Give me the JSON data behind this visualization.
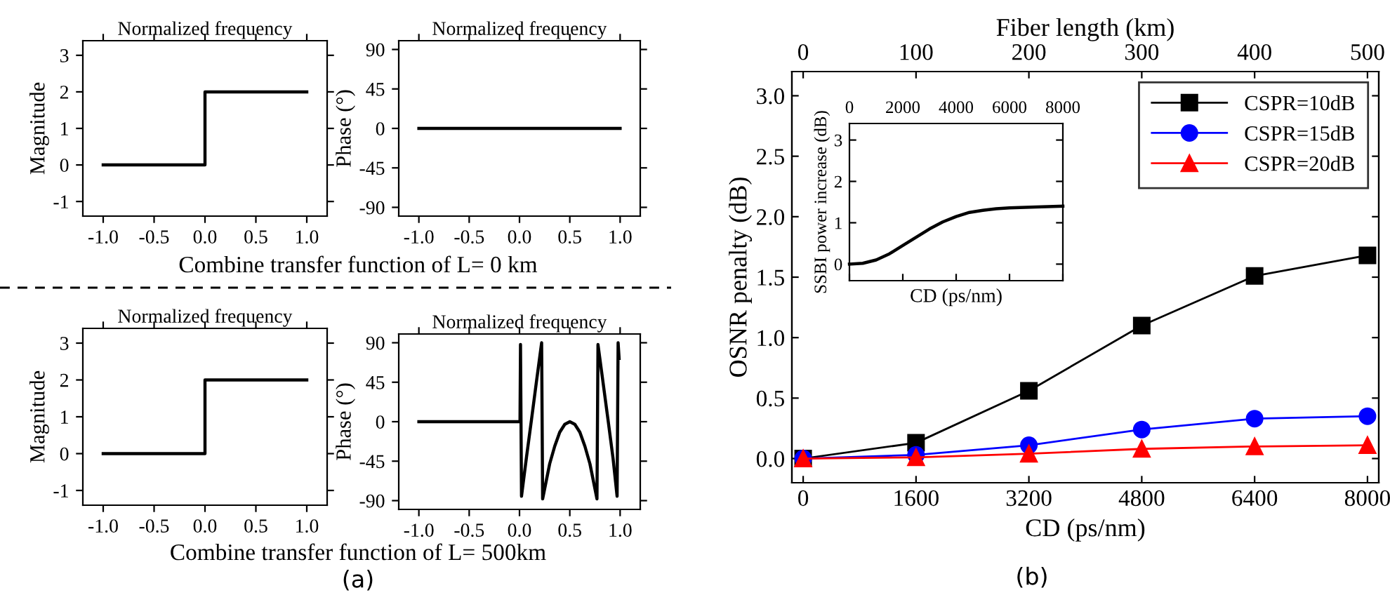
{
  "chart_data": [
    {
      "type": "line",
      "title": "Normalized frequency",
      "ylabel": "Magnitude",
      "annotations": [
        "Combine transfer function of L= 0 km"
      ],
      "xlim": [
        -1.2,
        1.2
      ],
      "ylim": [
        -1.4,
        3.4
      ],
      "xticks": [
        {
          "value": -1,
          "label": "-1.0"
        },
        {
          "value": -0.5,
          "label": "-0.5"
        },
        {
          "value": 0,
          "label": "0.0"
        },
        {
          "value": 0.5,
          "label": "0.5"
        },
        {
          "value": 1,
          "label": "1.0"
        }
      ],
      "yticks": [
        -1,
        0,
        1,
        2,
        3
      ],
      "series": [
        {
          "color": "#000000",
          "x": [
            -1,
            0,
            0,
            1
          ],
          "values": [
            0,
            0,
            2,
            2
          ]
        }
      ]
    },
    {
      "type": "line",
      "title": "Normalized frequency",
      "ylabel": "Phase (°)",
      "xlim": [
        -1.2,
        1.2
      ],
      "ylim": [
        -100,
        100
      ],
      "xticks": [
        {
          "value": -1,
          "label": "-1.0"
        },
        {
          "value": -0.5,
          "label": "-0.5"
        },
        {
          "value": 0,
          "label": "0.0"
        },
        {
          "value": 0.5,
          "label": "0.5"
        },
        {
          "value": 1,
          "label": "1.0"
        }
      ],
      "yticks": [
        -90,
        -45,
        0,
        45,
        90
      ],
      "series": [
        {
          "color": "#000000",
          "x": [
            -1,
            1
          ],
          "values": [
            0,
            0
          ]
        }
      ]
    },
    {
      "type": "line",
      "title": "Normalized frequency",
      "ylabel": "Magnitude",
      "annotations": [
        "Combine transfer function of L= 500km",
        "(a)"
      ],
      "xlim": [
        -1.2,
        1.2
      ],
      "ylim": [
        -1.4,
        3.4
      ],
      "xticks": [
        {
          "value": -1,
          "label": "-1.0"
        },
        {
          "value": -0.5,
          "label": "-0.5"
        },
        {
          "value": 0,
          "label": "0.0"
        },
        {
          "value": 0.5,
          "label": "0.5"
        },
        {
          "value": 1,
          "label": "1.0"
        }
      ],
      "yticks": [
        -1,
        0,
        1,
        2,
        3
      ],
      "series": [
        {
          "color": "#000000",
          "x": [
            -1,
            0,
            0,
            1
          ],
          "values": [
            0,
            0,
            2,
            2
          ]
        }
      ]
    },
    {
      "type": "line",
      "title": "Normalized frequency",
      "ylabel": "Phase (°)",
      "xlim": [
        -1.2,
        1.2
      ],
      "ylim": [
        -100,
        100
      ],
      "xticks": [
        {
          "value": -1,
          "label": "-1.0"
        },
        {
          "value": -0.5,
          "label": "-0.5"
        },
        {
          "value": 0,
          "label": "0.0"
        },
        {
          "value": 0.5,
          "label": "0.5"
        },
        {
          "value": 1,
          "label": "1.0"
        }
      ],
      "yticks": [
        -90,
        -45,
        0,
        45,
        90
      ],
      "series": [
        {
          "color": "#000000",
          "x": [
            -1,
            0.005,
            0.01,
            0.02,
            0.07,
            0.12,
            0.17,
            0.22,
            0.23,
            0.3,
            0.35,
            0.4,
            0.45,
            0.5,
            0.55,
            0.6,
            0.65,
            0.7,
            0.77,
            0.78,
            0.83,
            0.88,
            0.93,
            0.97,
            0.98,
            0.99
          ],
          "values": [
            0,
            0,
            88,
            -85,
            -40,
            3,
            47,
            90,
            -88,
            -48,
            -28,
            -12,
            -3,
            0,
            -3,
            -12,
            -28,
            -48,
            -88,
            88,
            45,
            2,
            -42,
            -85,
            90,
            72
          ]
        }
      ]
    },
    {
      "type": "line",
      "xlabel": "CD (ps/nm)",
      "ylabel": "OSNR penalty (dB)",
      "x2label": "Fiber length (km)",
      "annotations": [
        "(b)"
      ],
      "xlim": [
        -160,
        8160
      ],
      "ylim": [
        -0.2,
        3.2
      ],
      "x2lim": [
        -10,
        510
      ],
      "xticks": [
        0,
        1600,
        3200,
        4800,
        6400,
        8000
      ],
      "x2ticks": [
        0,
        100,
        200,
        300,
        400,
        500
      ],
      "yticks": [
        {
          "value": 0,
          "label": "0.0"
        },
        {
          "value": 0.5,
          "label": "0.5"
        },
        {
          "value": 1,
          "label": "1.0"
        },
        {
          "value": 1.5,
          "label": "1.5"
        },
        {
          "value": 2,
          "label": "2.0"
        },
        {
          "value": 2.5,
          "label": "2.5"
        },
        {
          "value": 3,
          "label": "3.0"
        }
      ],
      "legend": "top right",
      "x": [
        0,
        1600,
        3200,
        4800,
        6400,
        8000
      ],
      "series": [
        {
          "name": "CSPR=10dB",
          "color": "#000000",
          "marker": "square",
          "values": [
            0,
            0.13,
            0.56,
            1.1,
            1.51,
            1.68
          ]
        },
        {
          "name": "CSPR=15dB",
          "color": "#0000ff",
          "marker": "circle",
          "values": [
            0,
            0.03,
            0.11,
            0.24,
            0.33,
            0.35
          ]
        },
        {
          "name": "CSPR=20dB",
          "color": "#ff0000",
          "marker": "triangle",
          "values": [
            0,
            0.01,
            0.04,
            0.08,
            0.1,
            0.11
          ]
        }
      ]
    },
    {
      "type": "line",
      "xlabel": "CD (ps/nm)",
      "ylabel": "SSBI power increase (dB)",
      "xlim": [
        0,
        8000
      ],
      "xticks": [
        0,
        2000,
        4000,
        6000,
        8000
      ],
      "ylim": [
        -0.4,
        3.4
      ],
      "yticks": [
        0,
        1,
        2,
        3
      ],
      "series": [
        {
          "color": "#000000",
          "x": [
            0,
            500,
            1000,
            1500,
            2000,
            2500,
            3000,
            3500,
            4000,
            4500,
            5000,
            5500,
            6000,
            7000,
            8000
          ],
          "values": [
            0,
            0.02,
            0.1,
            0.25,
            0.45,
            0.65,
            0.85,
            1.02,
            1.15,
            1.25,
            1.3,
            1.34,
            1.36,
            1.38,
            1.4
          ]
        }
      ]
    }
  ]
}
